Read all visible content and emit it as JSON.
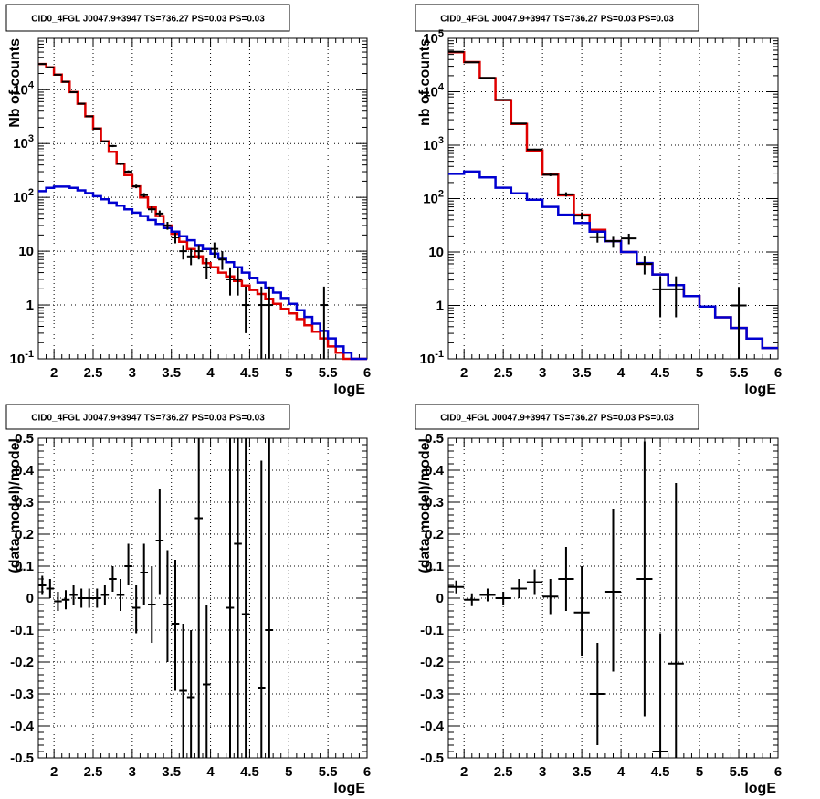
{
  "chart_data": [
    {
      "type": "step-histogram",
      "title": "CID0_4FGL J0047.9+3947 TS=736.27 PS=0.03 PS=0.03",
      "xlabel": "logE",
      "ylabel": "Nb of counts",
      "xlim": [
        1.8,
        6.0
      ],
      "ylim": [
        0.1,
        90000
      ],
      "yscale": "log",
      "grid": true,
      "xticks": [
        2,
        2.5,
        3,
        3.5,
        4,
        4.5,
        5,
        5.5,
        6
      ],
      "xtick_labels": [
        "2",
        "2.5",
        "3",
        "3.5",
        "4",
        "4.5",
        "5",
        "5.5",
        "6"
      ],
      "yticks": [
        0.1,
        1,
        10,
        100,
        1000,
        10000
      ],
      "ytick_labels": [
        "10^-1",
        "1",
        "10",
        "10^2",
        "10^3",
        "10^4"
      ],
      "bin_edges": [
        1.8,
        1.9,
        2.0,
        2.1,
        2.2,
        2.3,
        2.4,
        2.5,
        2.6,
        2.7,
        2.8,
        2.9,
        3.0,
        3.1,
        3.2,
        3.3,
        3.4,
        3.5,
        3.6,
        3.7,
        3.8,
        3.9,
        4.0,
        4.1,
        4.2,
        4.3,
        4.4,
        4.5,
        4.6,
        4.7,
        4.8,
        4.9,
        5.0,
        5.1,
        5.2,
        5.3,
        5.4,
        5.5,
        5.6,
        5.7,
        5.8,
        5.9,
        6.0
      ],
      "series": [
        {
          "color": "#e00000",
          "values": [
            30000,
            26000,
            19000,
            14000,
            9000,
            5500,
            3200,
            1900,
            1100,
            700,
            420,
            260,
            160,
            100,
            65,
            45,
            30,
            21,
            15,
            11,
            8,
            6,
            5,
            4,
            3.4,
            2.8,
            2.3,
            1.9,
            1.6,
            1.3,
            1.05,
            0.85,
            0.7,
            0.55,
            0.42,
            0.32,
            0.24,
            0.17,
            0.13,
            0.1,
            0.1,
            0.1
          ]
        },
        {
          "color": "#0000d0",
          "values": [
            130,
            150,
            158,
            158,
            150,
            135,
            120,
            105,
            92,
            80,
            70,
            60,
            52,
            45,
            38,
            32,
            27,
            23,
            19,
            16,
            13,
            11,
            9,
            7.5,
            6.2,
            5,
            4,
            3.2,
            2.6,
            2.1,
            1.7,
            1.35,
            1.05,
            0.8,
            0.6,
            0.45,
            0.33,
            0.24,
            0.17,
            0.13,
            0.1,
            0.1
          ]
        }
      ],
      "points": [
        {
          "x": 1.85,
          "y": 30000,
          "ylo": 29000,
          "yhi": 31000
        },
        {
          "x": 1.95,
          "y": 26000,
          "ylo": 25000,
          "yhi": 27000
        },
        {
          "x": 2.05,
          "y": 19000,
          "ylo": 18500,
          "yhi": 19500
        },
        {
          "x": 2.15,
          "y": 14000,
          "ylo": 13600,
          "yhi": 14400
        },
        {
          "x": 2.25,
          "y": 9000,
          "ylo": 8700,
          "yhi": 9300
        },
        {
          "x": 2.35,
          "y": 5500,
          "ylo": 5300,
          "yhi": 5700
        },
        {
          "x": 2.45,
          "y": 3200,
          "ylo": 3100,
          "yhi": 3300
        },
        {
          "x": 2.55,
          "y": 1900,
          "ylo": 1840,
          "yhi": 1960
        },
        {
          "x": 2.65,
          "y": 1100,
          "ylo": 1060,
          "yhi": 1140
        },
        {
          "x": 2.75,
          "y": 900,
          "ylo": 860,
          "yhi": 940
        },
        {
          "x": 2.85,
          "y": 420,
          "ylo": 400,
          "yhi": 440
        },
        {
          "x": 2.95,
          "y": 300,
          "ylo": 283,
          "yhi": 317
        },
        {
          "x": 3.05,
          "y": 160,
          "ylo": 148,
          "yhi": 172
        },
        {
          "x": 3.15,
          "y": 110,
          "ylo": 100,
          "yhi": 120
        },
        {
          "x": 3.25,
          "y": 60,
          "ylo": 52,
          "yhi": 68
        },
        {
          "x": 3.35,
          "y": 50,
          "ylo": 43,
          "yhi": 57
        },
        {
          "x": 3.45,
          "y": 30,
          "ylo": 25,
          "yhi": 35
        },
        {
          "x": 3.55,
          "y": 18,
          "ylo": 14,
          "yhi": 22
        },
        {
          "x": 3.65,
          "y": 10,
          "ylo": 7,
          "yhi": 13
        },
        {
          "x": 3.75,
          "y": 8,
          "ylo": 5.5,
          "yhi": 11
        },
        {
          "x": 3.85,
          "y": 10,
          "ylo": 7,
          "yhi": 13
        },
        {
          "x": 3.95,
          "y": 5,
          "ylo": 3,
          "yhi": 7.5
        },
        {
          "x": 4.05,
          "y": 11,
          "ylo": 7.5,
          "yhi": 14.5
        },
        {
          "x": 4.15,
          "y": 7,
          "ylo": 4.5,
          "yhi": 10
        },
        {
          "x": 4.25,
          "y": 3,
          "ylo": 1.5,
          "yhi": 5
        },
        {
          "x": 4.35,
          "y": 3,
          "ylo": 1.5,
          "yhi": 5
        },
        {
          "x": 4.45,
          "y": 1,
          "ylo": 0.3,
          "yhi": 2.2
        },
        {
          "x": 4.65,
          "y": 1,
          "ylo": 0.1,
          "yhi": 2.2
        },
        {
          "x": 4.75,
          "y": 1,
          "ylo": 0.1,
          "yhi": 2.2
        },
        {
          "x": 5.45,
          "y": 1,
          "ylo": 0.1,
          "yhi": 2.2
        }
      ]
    },
    {
      "type": "step-histogram",
      "title": "CID0_4FGL J0047.9+3947 TS=736.27 PS=0.03 PS=0.03",
      "xlabel": "logE",
      "ylabel": "nb of counts",
      "xlim": [
        1.8,
        6.0
      ],
      "ylim": [
        0.1,
        100000
      ],
      "yscale": "log",
      "grid": true,
      "xticks": [
        2,
        2.5,
        3,
        3.5,
        4,
        4.5,
        5,
        5.5,
        6
      ],
      "xtick_labels": [
        "2",
        "2.5",
        "3",
        "3.5",
        "4",
        "4.5",
        "5",
        "5.5",
        "6"
      ],
      "yticks": [
        0.1,
        1,
        10,
        100,
        1000,
        10000,
        100000
      ],
      "ytick_labels": [
        "10^-1",
        "1",
        "10",
        "10^2",
        "10^3",
        "10^4",
        "10^5"
      ],
      "bin_edges": [
        1.8,
        2.0,
        2.2,
        2.4,
        2.6,
        2.8,
        3.0,
        3.2,
        3.4,
        3.6,
        3.8,
        4.0,
        4.2,
        4.4,
        4.6,
        4.8,
        5.0,
        5.2,
        5.4,
        5.6,
        5.8,
        6.0
      ],
      "series": [
        {
          "color": "#e00000",
          "values": [
            55000,
            36000,
            18000,
            7000,
            2500,
            800,
            280,
            115,
            50,
            26,
            16,
            10,
            6,
            3.8,
            2.4,
            1.5,
            0.95,
            0.6,
            0.38,
            0.24,
            0.16
          ]
        },
        {
          "color": "#0000d0",
          "values": [
            290,
            320,
            250,
            160,
            125,
            95,
            70,
            50,
            35,
            24,
            16,
            10,
            6.2,
            3.8,
            2.4,
            1.5,
            0.95,
            0.6,
            0.38,
            0.24,
            0.16
          ]
        }
      ],
      "points": [
        {
          "x": 1.9,
          "y": 56000,
          "ylo": 55000,
          "yhi": 57000
        },
        {
          "x": 2.1,
          "y": 35500,
          "ylo": 35000,
          "yhi": 36000
        },
        {
          "x": 2.3,
          "y": 18200,
          "ylo": 17900,
          "yhi": 18500
        },
        {
          "x": 2.5,
          "y": 7050,
          "ylo": 6900,
          "yhi": 7200
        },
        {
          "x": 2.7,
          "y": 2550,
          "ylo": 2480,
          "yhi": 2620
        },
        {
          "x": 2.9,
          "y": 830,
          "ylo": 800,
          "yhi": 860
        },
        {
          "x": 3.1,
          "y": 280,
          "ylo": 263,
          "yhi": 297
        },
        {
          "x": 3.3,
          "y": 120,
          "ylo": 109,
          "yhi": 131
        },
        {
          "x": 3.5,
          "y": 48,
          "ylo": 41,
          "yhi": 55
        },
        {
          "x": 3.7,
          "y": 19,
          "ylo": 15,
          "yhi": 23
        },
        {
          "x": 3.9,
          "y": 16,
          "ylo": 12,
          "yhi": 20
        },
        {
          "x": 4.1,
          "y": 18,
          "ylo": 14,
          "yhi": 22
        },
        {
          "x": 4.3,
          "y": 6,
          "ylo": 3.8,
          "yhi": 8.5
        },
        {
          "x": 4.5,
          "y": 2,
          "ylo": 0.6,
          "yhi": 3.5
        },
        {
          "x": 4.7,
          "y": 2,
          "ylo": 0.6,
          "yhi": 3.5
        },
        {
          "x": 5.5,
          "y": 1,
          "ylo": 0.1,
          "yhi": 2.2
        }
      ]
    },
    {
      "type": "scatter-errorbar",
      "title": "CID0_4FGL J0047.9+3947 TS=736.27 PS=0.03 PS=0.03",
      "xlabel": "logE",
      "ylabel": "(data-model)/model",
      "xlim": [
        1.8,
        6.0
      ],
      "ylim": [
        -0.5,
        0.5
      ],
      "grid": true,
      "xticks": [
        2,
        2.5,
        3,
        3.5,
        4,
        4.5,
        5,
        5.5,
        6
      ],
      "xtick_labels": [
        "2",
        "2.5",
        "3",
        "3.5",
        "4",
        "4.5",
        "5",
        "5.5",
        "6"
      ],
      "yticks": [
        -0.5,
        -0.4,
        -0.3,
        -0.2,
        -0.1,
        0,
        0.1,
        0.2,
        0.3,
        0.4,
        0.5
      ],
      "ytick_labels": [
        "-0.5",
        "-0.4",
        "-0.3",
        "-0.2",
        "-0.1",
        "0",
        "0.1",
        "0.2",
        "0.3",
        "0.4",
        "0.5"
      ],
      "half_width": 0.05,
      "points": [
        {
          "x": 1.85,
          "y": 0.04,
          "ylo": 0.01,
          "yhi": 0.07
        },
        {
          "x": 1.95,
          "y": 0.03,
          "ylo": 0.0,
          "yhi": 0.06
        },
        {
          "x": 2.05,
          "y": -0.01,
          "ylo": -0.04,
          "yhi": 0.02
        },
        {
          "x": 2.15,
          "y": -0.005,
          "ylo": -0.035,
          "yhi": 0.025
        },
        {
          "x": 2.25,
          "y": 0.01,
          "ylo": -0.02,
          "yhi": 0.04
        },
        {
          "x": 2.35,
          "y": 0.0,
          "ylo": -0.03,
          "yhi": 0.03
        },
        {
          "x": 2.45,
          "y": 0.0,
          "ylo": -0.03,
          "yhi": 0.03
        },
        {
          "x": 2.55,
          "y": 0.0,
          "ylo": -0.03,
          "yhi": 0.03
        },
        {
          "x": 2.65,
          "y": 0.01,
          "ylo": -0.02,
          "yhi": 0.04
        },
        {
          "x": 2.75,
          "y": 0.06,
          "ylo": 0.02,
          "yhi": 0.1
        },
        {
          "x": 2.85,
          "y": 0.01,
          "ylo": -0.04,
          "yhi": 0.06
        },
        {
          "x": 2.95,
          "y": 0.1,
          "ylo": 0.04,
          "yhi": 0.17
        },
        {
          "x": 3.05,
          "y": -0.03,
          "ylo": -0.11,
          "yhi": 0.04
        },
        {
          "x": 3.15,
          "y": 0.08,
          "ylo": -0.02,
          "yhi": 0.17
        },
        {
          "x": 3.25,
          "y": -0.02,
          "ylo": -0.14,
          "yhi": 0.1
        },
        {
          "x": 3.35,
          "y": 0.18,
          "ylo": 0.01,
          "yhi": 0.34
        },
        {
          "x": 3.45,
          "y": -0.02,
          "ylo": -0.2,
          "yhi": 0.15
        },
        {
          "x": 3.55,
          "y": -0.08,
          "ylo": -0.29,
          "yhi": 0.12
        },
        {
          "x": 3.65,
          "y": -0.29,
          "ylo": -0.5,
          "yhi": -0.08
        },
        {
          "x": 3.75,
          "y": -0.31,
          "ylo": -0.5,
          "yhi": -0.1
        },
        {
          "x": 3.85,
          "y": 0.25,
          "ylo": -0.5,
          "yhi": 0.5
        },
        {
          "x": 3.95,
          "y": -0.27,
          "ylo": -0.5,
          "yhi": -0.02
        },
        {
          "x": 4.25,
          "y": -0.03,
          "ylo": -0.5,
          "yhi": 0.5
        },
        {
          "x": 4.35,
          "y": 0.17,
          "ylo": -0.5,
          "yhi": 0.5
        },
        {
          "x": 4.45,
          "y": -0.05,
          "ylo": -0.5,
          "yhi": 0.5
        },
        {
          "x": 4.65,
          "y": -0.28,
          "ylo": -0.5,
          "yhi": 0.43
        },
        {
          "x": 4.75,
          "y": -0.1,
          "ylo": -0.5,
          "yhi": 0.5
        }
      ]
    },
    {
      "type": "scatter-errorbar",
      "title": "CID0_4FGL J0047.9+3947 TS=736.27 PS=0.03 PS=0.03",
      "xlabel": "logE",
      "ylabel": "(data-model)/model",
      "xlim": [
        1.8,
        6.0
      ],
      "ylim": [
        -0.5,
        0.5
      ],
      "grid": true,
      "xticks": [
        2,
        2.5,
        3,
        3.5,
        4,
        4.5,
        5,
        5.5,
        6
      ],
      "xtick_labels": [
        "2",
        "2.5",
        "3",
        "3.5",
        "4",
        "4.5",
        "5",
        "5.5",
        "6"
      ],
      "yticks": [
        -0.5,
        -0.4,
        -0.3,
        -0.2,
        -0.1,
        0,
        0.1,
        0.2,
        0.3,
        0.4,
        0.5
      ],
      "ytick_labels": [
        "-0.5",
        "-0.4",
        "-0.3",
        "-0.2",
        "-0.1",
        "0",
        "0.1",
        "0.2",
        "0.3",
        "0.4",
        "0.5"
      ],
      "half_width": 0.1,
      "points": [
        {
          "x": 1.9,
          "y": 0.035,
          "ylo": 0.015,
          "yhi": 0.055
        },
        {
          "x": 2.1,
          "y": -0.005,
          "ylo": -0.025,
          "yhi": 0.015
        },
        {
          "x": 2.3,
          "y": 0.01,
          "ylo": -0.01,
          "yhi": 0.03
        },
        {
          "x": 2.5,
          "y": 0.0,
          "ylo": -0.02,
          "yhi": 0.02
        },
        {
          "x": 2.7,
          "y": 0.03,
          "ylo": 0.0,
          "yhi": 0.06
        },
        {
          "x": 2.9,
          "y": 0.05,
          "ylo": 0.01,
          "yhi": 0.09
        },
        {
          "x": 3.1,
          "y": 0.005,
          "ylo": -0.05,
          "yhi": 0.06
        },
        {
          "x": 3.3,
          "y": 0.06,
          "ylo": -0.04,
          "yhi": 0.16
        },
        {
          "x": 3.5,
          "y": -0.045,
          "ylo": -0.18,
          "yhi": 0.1
        },
        {
          "x": 3.7,
          "y": -0.3,
          "ylo": -0.46,
          "yhi": -0.14
        },
        {
          "x": 3.9,
          "y": 0.02,
          "ylo": -0.23,
          "yhi": 0.28
        },
        {
          "x": 4.3,
          "y": 0.06,
          "ylo": -0.37,
          "yhi": 0.49
        },
        {
          "x": 4.5,
          "y": -0.48,
          "ylo": -0.5,
          "yhi": -0.11
        },
        {
          "x": 4.7,
          "y": -0.205,
          "ylo": -0.5,
          "yhi": 0.36
        }
      ]
    }
  ]
}
